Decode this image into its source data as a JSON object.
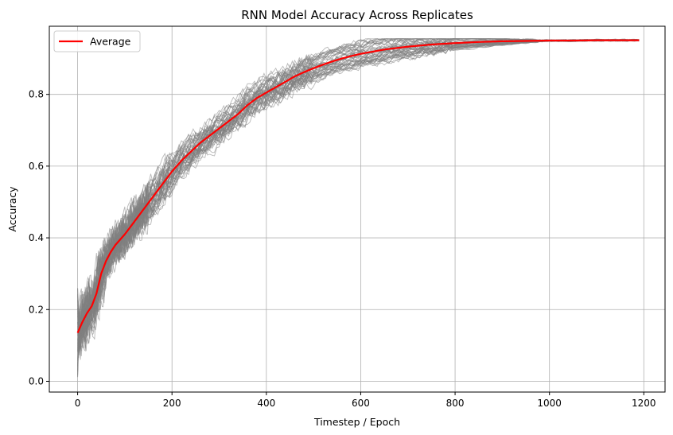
{
  "chart_data": {
    "type": "line",
    "title": "RNN Model Accuracy Across Replicates",
    "xlabel": "Timestep / Epoch",
    "ylabel": "Accuracy",
    "xlim": [
      -60,
      1245
    ],
    "ylim": [
      -0.03,
      0.99
    ],
    "xticks": [
      0,
      200,
      400,
      600,
      800,
      1000,
      1200
    ],
    "yticks": [
      0.0,
      0.2,
      0.4,
      0.6,
      0.8
    ],
    "xtick_labels": [
      "0",
      "200",
      "400",
      "600",
      "800",
      "1000",
      "1200"
    ],
    "ytick_labels": [
      "0.0",
      "0.2",
      "0.4",
      "0.6",
      "0.8"
    ],
    "grid": true,
    "legend_position": "top-left",
    "replicate_count": 50,
    "replicate_color": "#808080",
    "average_color": "#ff0000",
    "series": [
      {
        "name": "Average",
        "x": [
          0,
          10,
          20,
          30,
          40,
          50,
          60,
          70,
          80,
          100,
          120,
          140,
          160,
          180,
          200,
          220,
          240,
          260,
          280,
          300,
          320,
          340,
          360,
          380,
          400,
          420,
          440,
          460,
          480,
          500,
          520,
          540,
          560,
          580,
          600,
          650,
          700,
          750,
          800,
          850,
          900,
          950,
          1000,
          1050,
          1100,
          1150,
          1190
        ],
        "values": [
          0.135,
          0.165,
          0.19,
          0.21,
          0.245,
          0.3,
          0.335,
          0.36,
          0.38,
          0.41,
          0.445,
          0.48,
          0.515,
          0.55,
          0.585,
          0.615,
          0.64,
          0.665,
          0.685,
          0.705,
          0.725,
          0.745,
          0.77,
          0.79,
          0.805,
          0.82,
          0.835,
          0.85,
          0.862,
          0.873,
          0.883,
          0.892,
          0.9,
          0.907,
          0.913,
          0.925,
          0.933,
          0.939,
          0.943,
          0.946,
          0.948,
          0.949,
          0.95,
          0.95,
          0.951,
          0.951,
          0.951
        ]
      }
    ]
  }
}
